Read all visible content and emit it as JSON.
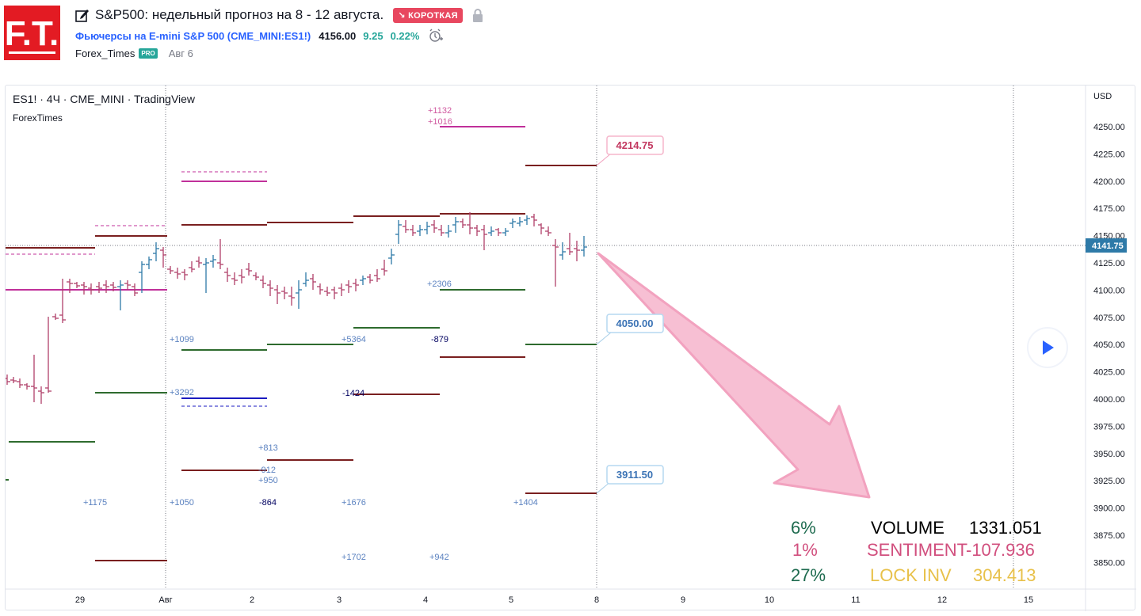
{
  "header": {
    "logo_text": "F.T.",
    "title": "S&P500: недельный прогноз на 8 - 12 августа.",
    "direction_badge": "↘ КОРОТКАЯ",
    "symbol_link": "Фьючерсы на E-mini S&P 500 (CME_MINI:ES1!)",
    "price": "4156.00",
    "change": "9.25",
    "change_pct": "0.22%",
    "author": "Forex_Times",
    "author_badge": "PRO",
    "date": "Авг 6"
  },
  "chart": {
    "legend_title": "ES1! · 4Ч · CME_MINI · TradingView",
    "legend_sub": "ForexTimes",
    "currency": "USD",
    "last_price_label": "4141.75",
    "price_axis": [
      "4250.00",
      "4225.00",
      "4200.00",
      "4175.00",
      "4150.00",
      "4125.00",
      "4100.00",
      "4075.00",
      "4050.00",
      "4025.00",
      "4000.00",
      "3975.00",
      "3950.00",
      "3925.00",
      "3900.00",
      "3875.00",
      "3850.00"
    ],
    "time_axis": [
      "29",
      "Авг",
      "2",
      "3",
      "4",
      "5",
      "8",
      "9",
      "10",
      "11",
      "12",
      "15"
    ],
    "callouts": [
      "4214.75",
      "4050.00",
      "3911.50"
    ],
    "level_labels": [
      "+1132",
      "+1016",
      "+2306",
      "+1099",
      "+5364",
      "-879",
      "+3292",
      "-1424",
      "+813",
      "-912",
      "+950",
      "+1175",
      "+1050",
      "-864",
      "+1676",
      "+1404",
      "+1702",
      "+942"
    ],
    "stats": [
      {
        "pct": "6%",
        "label": "VOLUME",
        "value": "1331.051",
        "pct_color": "#1e6b4f",
        "label_color": "#000000",
        "value_color": "#000000"
      },
      {
        "pct": "1%",
        "label": "SENTIMENT",
        "value": "-107.936",
        "pct_color": "#d14f7e",
        "label_color": "#d14f7e",
        "value_color": "#d14f7e"
      },
      {
        "pct": "27%",
        "label": "LOCK INV",
        "value": "304.413",
        "pct_color": "#1e6b4f",
        "label_color": "#e8c14a",
        "value_color": "#e8c14a"
      }
    ],
    "colors": {
      "up": "#2e7aa8",
      "down": "#b0406a",
      "resistance": "#7a1f1f",
      "support": "#2e6b2e",
      "magenta": "#c0309a",
      "pink_arrow": "#f7bfd3"
    }
  }
}
